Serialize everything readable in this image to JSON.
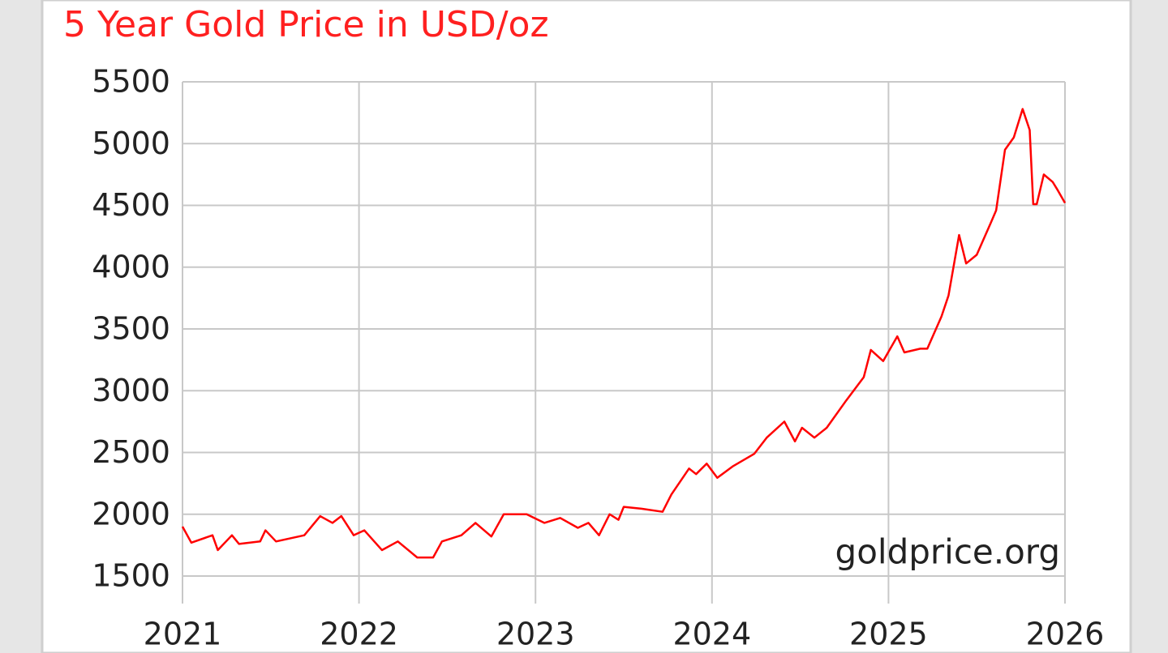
{
  "chart_data": {
    "type": "line",
    "title": "5 Year Gold Price in USD/oz",
    "annotation": "goldprice.org",
    "x": [
      2021.0,
      2021.05,
      2021.17,
      2021.2,
      2021.28,
      2021.32,
      2021.44,
      2021.47,
      2021.53,
      2021.69,
      2021.78,
      2021.85,
      2021.9,
      2021.97,
      2022.03,
      2022.13,
      2022.22,
      2022.33,
      2022.42,
      2022.47,
      2022.58,
      2022.66,
      2022.75,
      2022.82,
      2022.95,
      2023.05,
      2023.14,
      2023.24,
      2023.3,
      2023.36,
      2023.42,
      2023.47,
      2023.5,
      2023.6,
      2023.72,
      2023.77,
      2023.87,
      2023.91,
      2023.97,
      2024.03,
      2024.12,
      2024.24,
      2024.31,
      2024.41,
      2024.47,
      2024.51,
      2024.58,
      2024.65,
      2024.76,
      2024.86,
      2024.9,
      2024.97,
      2025.05,
      2025.09,
      2025.18,
      2025.22,
      2025.3,
      2025.34,
      2025.4,
      2025.44,
      2025.5,
      2025.58,
      2025.61,
      2025.66,
      2025.71,
      2025.76,
      2025.8,
      2025.82,
      2025.84,
      2025.88,
      2025.93,
      2025.96,
      2026.0
    ],
    "series": [
      {
        "name": "Gold Price",
        "color": "#ff0000",
        "values": [
          1900,
          1770,
          1830,
          1710,
          1830,
          1760,
          1780,
          1870,
          1780,
          1830,
          1985,
          1930,
          1985,
          1830,
          1870,
          1710,
          1780,
          1650,
          1650,
          1780,
          1830,
          1930,
          1820,
          2000,
          2000,
          1930,
          1970,
          1890,
          1930,
          1830,
          2000,
          1955,
          2060,
          2045,
          2020,
          2160,
          2370,
          2325,
          2410,
          2295,
          2390,
          2490,
          2620,
          2750,
          2590,
          2700,
          2620,
          2700,
          2920,
          3110,
          3330,
          3240,
          3440,
          3310,
          3340,
          3340,
          3600,
          3770,
          4260,
          4030,
          4100,
          4360,
          4460,
          4950,
          5050,
          5280,
          5110,
          4510,
          4510,
          4750,
          4690,
          4620,
          4520
        ]
      }
    ],
    "xlim": [
      2021,
      2026
    ],
    "xticks": [
      2021,
      2022,
      2023,
      2024,
      2025,
      2026
    ],
    "ylim": [
      1500,
      5500
    ],
    "yticks": [
      1500,
      2000,
      2500,
      3000,
      3500,
      4000,
      4500,
      5000,
      5500
    ],
    "grid": true
  }
}
